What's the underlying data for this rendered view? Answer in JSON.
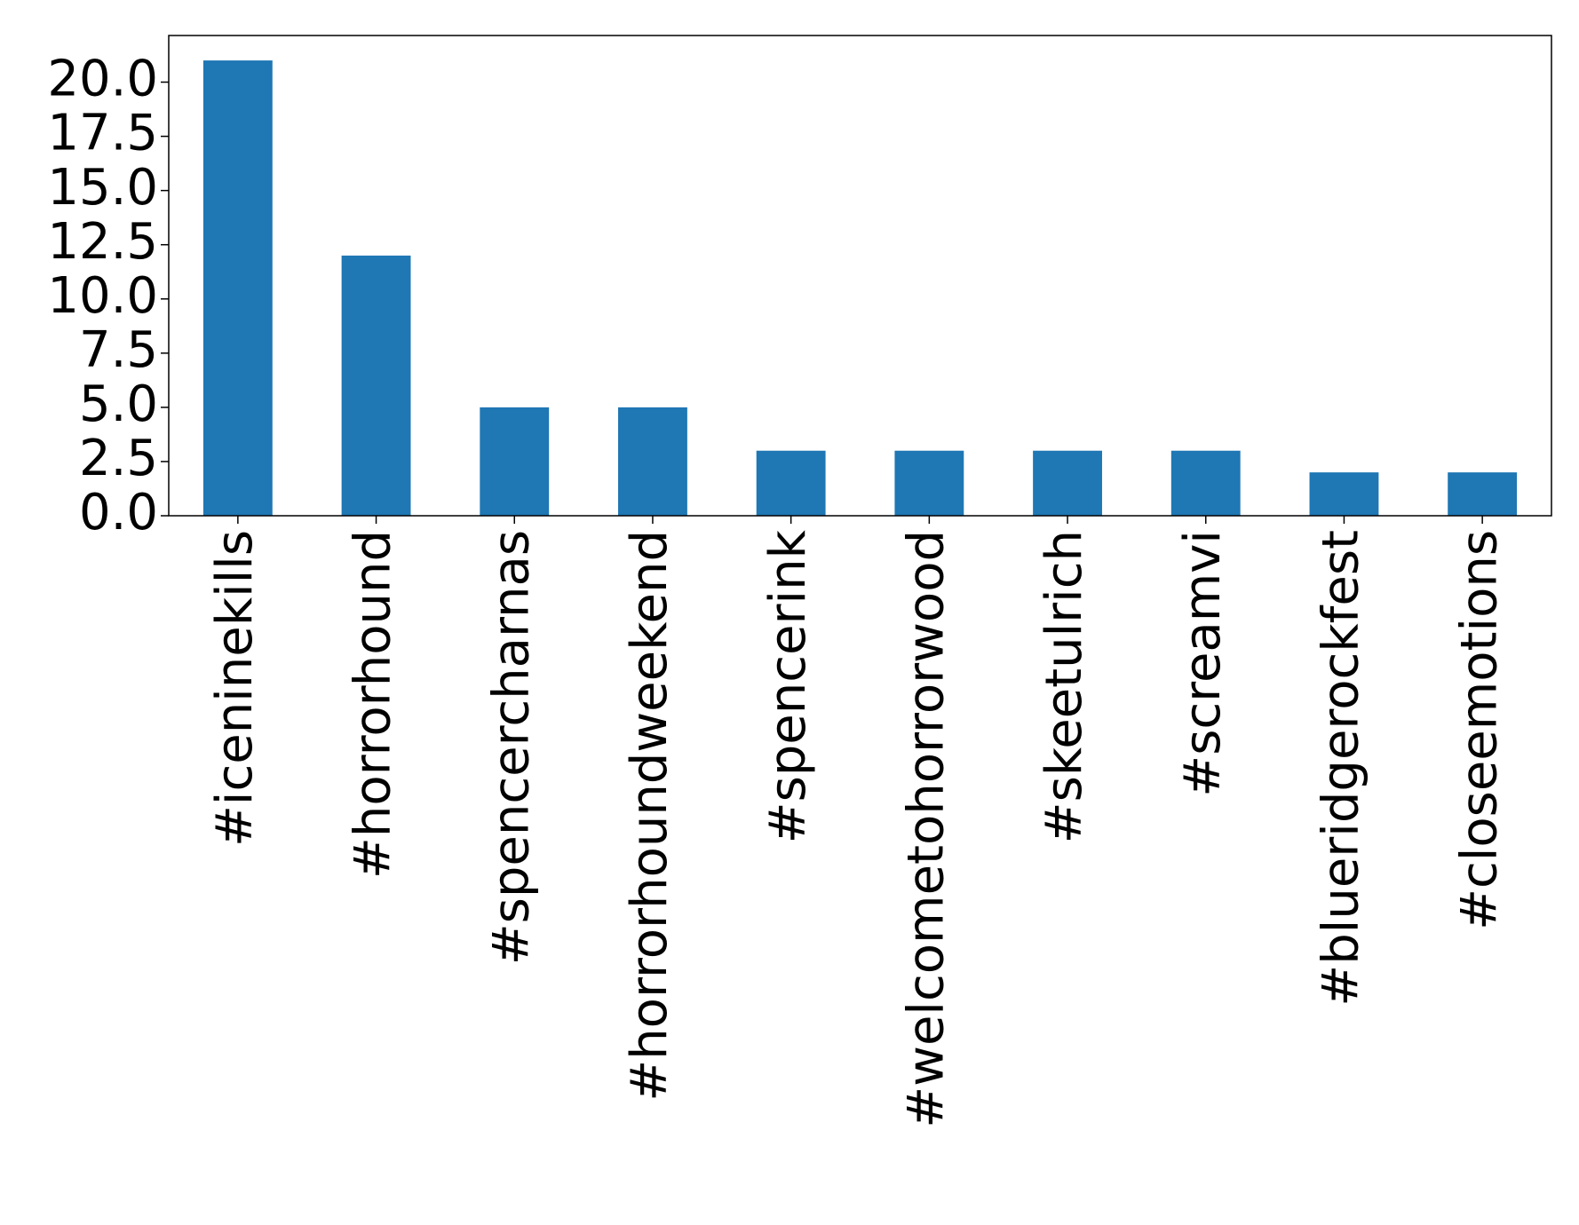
{
  "chart_data": {
    "type": "bar",
    "categories": [
      "#iceninekills",
      "#horrorhound",
      "#spencercharnas",
      "#horrorhoundweekend",
      "#spencerink",
      "#welcometohorrorwood",
      "#skeetulrich",
      "#screamvi",
      "#blueridgerockfest",
      "#closeemotions"
    ],
    "values": [
      21,
      12,
      5,
      5,
      3,
      3,
      3,
      3,
      2,
      2
    ],
    "color": "#1f77b4",
    "ylim": [
      0,
      22.15
    ],
    "yticks": [
      {
        "value": 0,
        "label": "0.0"
      },
      2.5,
      {
        "value": 5,
        "label": "5.0"
      },
      7.5,
      {
        "value": 10,
        "label": "10.0"
      },
      12.5,
      {
        "value": 15,
        "label": "15.0"
      },
      17.5,
      {
        "value": 20,
        "label": "20.0"
      }
    ],
    "grid": false
  }
}
